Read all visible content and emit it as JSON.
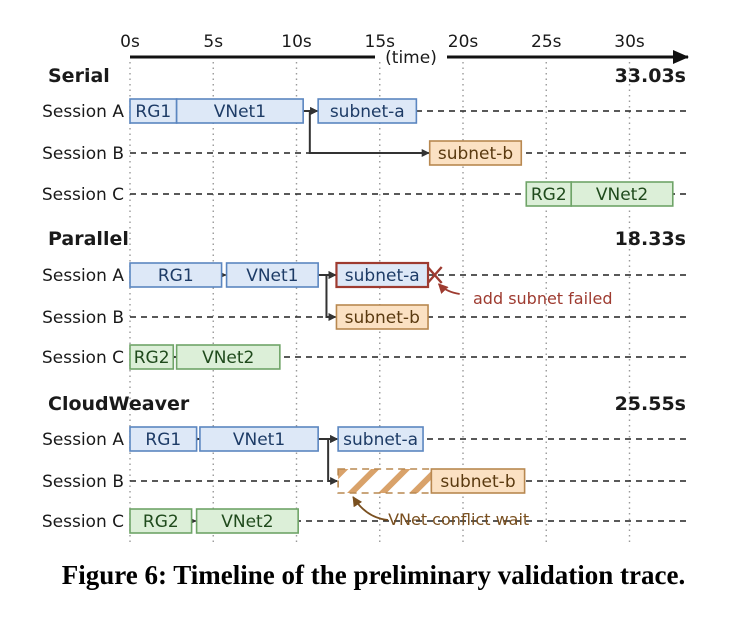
{
  "axis": {
    "ticks": [
      "0s",
      "5s",
      "10s",
      "15s",
      "20s",
      "25s",
      "30s"
    ],
    "label": "(time)"
  },
  "sessions": [
    "Session A",
    "Session B",
    "Session C"
  ],
  "sections": [
    {
      "title": "Serial",
      "total": "33.03s",
      "boxes": [
        {
          "row": 0,
          "start": 0,
          "end": 2.8,
          "label": "RG1",
          "kind": "blue"
        },
        {
          "row": 0,
          "start": 2.8,
          "end": 10.4,
          "label": "VNet1",
          "kind": "blue"
        },
        {
          "row": 0,
          "start": 11.3,
          "end": 17.2,
          "label": "subnet-a",
          "kind": "blue"
        },
        {
          "row": 1,
          "start": 18.0,
          "end": 23.5,
          "label": "subnet-b",
          "kind": "orange"
        },
        {
          "row": 2,
          "start": 23.8,
          "end": 26.5,
          "label": "RG2",
          "kind": "green"
        },
        {
          "row": 2,
          "start": 26.5,
          "end": 32.6,
          "label": "VNet2",
          "kind": "green"
        }
      ]
    },
    {
      "title": "Parallel",
      "total": "18.33s",
      "boxes": [
        {
          "row": 0,
          "start": 0,
          "end": 5.5,
          "label": "RG1",
          "kind": "blue"
        },
        {
          "row": 0,
          "start": 5.8,
          "end": 11.3,
          "label": "VNet1",
          "kind": "blue"
        },
        {
          "row": 0,
          "start": 12.4,
          "end": 17.9,
          "label": "subnet-a",
          "kind": "failed"
        },
        {
          "row": 1,
          "start": 12.4,
          "end": 17.9,
          "label": "subnet-b",
          "kind": "orange"
        },
        {
          "row": 2,
          "start": 0,
          "end": 2.6,
          "label": "RG2",
          "kind": "green"
        },
        {
          "row": 2,
          "start": 2.8,
          "end": 9.0,
          "label": "VNet2",
          "kind": "green"
        }
      ],
      "annotation": {
        "text": "add subnet failed"
      }
    },
    {
      "title": "CloudWeaver",
      "total": "25.55s",
      "boxes": [
        {
          "row": 0,
          "start": 0,
          "end": 4.0,
          "label": "RG1",
          "kind": "blue"
        },
        {
          "row": 0,
          "start": 4.2,
          "end": 11.3,
          "label": "VNet1",
          "kind": "blue"
        },
        {
          "row": 0,
          "start": 12.5,
          "end": 17.6,
          "label": "subnet-a",
          "kind": "blue"
        },
        {
          "row": 1,
          "start": 12.5,
          "end": 18.1,
          "label": "",
          "kind": "wait"
        },
        {
          "row": 1,
          "start": 18.1,
          "end": 23.7,
          "label": "subnet-b",
          "kind": "orange"
        },
        {
          "row": 2,
          "start": 0,
          "end": 3.7,
          "label": "RG2",
          "kind": "green"
        },
        {
          "row": 2,
          "start": 4.0,
          "end": 10.1,
          "label": "VNet2",
          "kind": "green"
        }
      ],
      "annotation": {
        "text": "VNet conflict wait"
      }
    }
  ],
  "colors": {
    "blue_fill": "#dde8f7",
    "blue_stroke": "#5b86c0",
    "orange_fill": "#fbe1c3",
    "orange_stroke": "#b88850",
    "green_fill": "#dcefd8",
    "green_stroke": "#6fa468",
    "failed_stroke": "#9e3b30",
    "annotation_red": "#9e3b30",
    "annotation_brown": "#7a5020",
    "arrow": "#333333"
  },
  "caption": "Figure 6: Timeline of the preliminary validation trace."
}
